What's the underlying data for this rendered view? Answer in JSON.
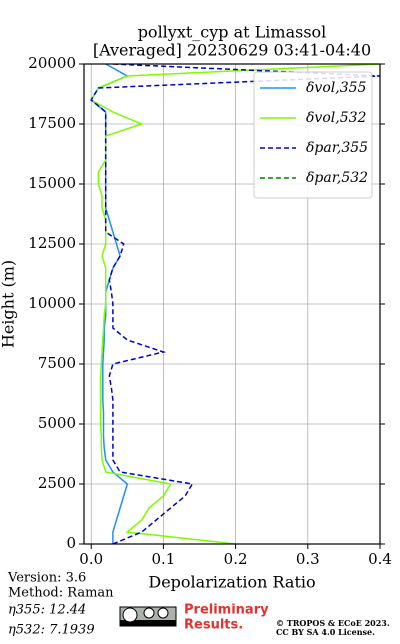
{
  "chart_data": {
    "type": "line",
    "title": [
      "pollyxt_cyp at Limassol",
      "[Averaged] 20230629 03:41-04:40"
    ],
    "x_label": "Depolarization Ratio",
    "y_label": "Height (m)",
    "xlim": [
      -0.01,
      0.4
    ],
    "ylim": [
      0,
      20000
    ],
    "xticks": [
      {
        "value": 0,
        "label": "0.0"
      },
      0.1,
      0.2,
      0.3,
      0.4
    ],
    "yticks": [
      0,
      2500,
      5000,
      7500,
      10000,
      12500,
      15000,
      17500,
      20000
    ],
    "grid": true,
    "legend": "upper right",
    "heights": [
      0,
      500,
      1000,
      1500,
      2000,
      2500,
      3000,
      3500,
      4000,
      4500,
      5000,
      5500,
      6000,
      6500,
      7000,
      7500,
      8000,
      8500,
      9000,
      9500,
      10000,
      10500,
      11000,
      11500,
      12000,
      12500,
      13000,
      13500,
      14000,
      14500,
      15000,
      15500,
      16000,
      16500,
      17000,
      17500,
      18000,
      18500,
      19000,
      19500,
      20000
    ],
    "series": [
      {
        "name": "δvol,355",
        "color": "#1e90ff",
        "dash": "solid",
        "values": [
          0.03,
          0.03,
          0.035,
          0.04,
          0.045,
          0.05,
          0.03,
          0.02,
          0.018,
          0.017,
          0.017,
          0.017,
          0.016,
          0.016,
          0.016,
          0.016,
          0.017,
          0.018,
          0.018,
          0.02,
          0.02,
          0.02,
          0.025,
          0.03,
          0.04,
          0.035,
          0.03,
          0.025,
          0.02,
          0.02,
          0.02,
          0.02,
          0.02,
          0.02,
          0.02,
          0.02,
          0.02,
          0.0,
          0.01,
          0.05,
          0.02
        ]
      },
      {
        "name": "δvol,532",
        "color": "#7cfc00",
        "dash": "solid",
        "values": [
          0.2,
          0.05,
          0.07,
          0.08,
          0.1,
          0.11,
          0.02,
          0.015,
          0.014,
          0.014,
          0.013,
          0.013,
          0.013,
          0.013,
          0.013,
          0.014,
          0.015,
          0.016,
          0.017,
          0.018,
          0.02,
          0.02,
          0.02,
          0.02,
          0.015,
          0.02,
          0.02,
          0.02,
          0.015,
          0.015,
          0.01,
          0.01,
          0.02,
          0.02,
          0.02,
          0.07,
          0.03,
          0.0,
          0.01,
          0.05,
          0.4
        ]
      },
      {
        "name": "δpar,355",
        "color": "#0000cd",
        "dash": "dashed",
        "values": [
          0.03,
          0.07,
          0.09,
          0.11,
          0.13,
          0.14,
          0.04,
          0.03,
          0.03,
          0.03,
          0.03,
          0.03,
          0.03,
          0.028,
          0.025,
          0.03,
          0.1,
          0.05,
          0.03,
          0.03,
          0.03,
          0.028,
          0.025,
          0.03,
          0.04,
          0.045,
          0.02,
          0.02,
          0.02,
          0.02,
          0.02,
          0.02,
          0.02,
          0.02,
          0.02,
          0.02,
          0.02,
          0.0,
          0.01,
          0.4,
          0.03
        ]
      },
      {
        "name": "δpar,532",
        "color": "#008000",
        "dash": "dashed",
        "values": [
          null,
          null,
          null,
          null,
          null,
          null,
          null,
          null,
          null,
          null,
          null,
          null,
          null,
          null,
          null,
          null,
          null,
          null,
          null,
          null,
          null,
          null,
          null,
          null,
          null,
          null,
          null,
          null,
          null,
          null,
          null,
          null,
          null,
          null,
          null,
          null,
          null,
          null,
          null,
          null,
          null
        ]
      }
    ]
  },
  "info": [
    "Version: 3.6",
    "Method: Raman",
    "η355:  12.44",
    "η532: 7.1939"
  ],
  "badge": [
    "Preliminary",
    "Results."
  ],
  "copyright": [
    "© TROPOS & ECoE 2023.",
    "CC BY SA 4.0 License."
  ]
}
